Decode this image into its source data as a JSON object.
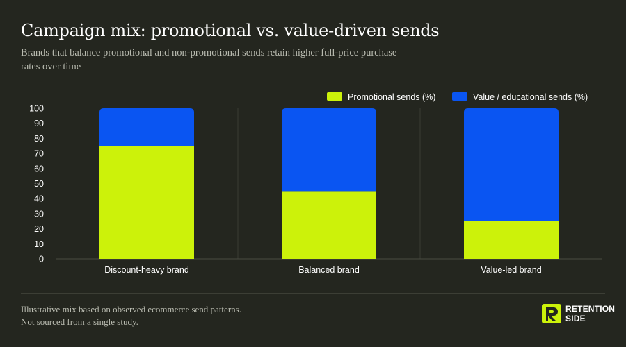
{
  "header": {
    "title": "Campaign mix: promotional vs. value-driven sends",
    "subtitle": "Brands that balance promotional and non-promotional sends retain higher full-price purchase rates over time"
  },
  "colors": {
    "background": "#24261f",
    "promotional": "#ccf20a",
    "value": "#0a55f2",
    "grid": "#3a3c33",
    "text_muted": "#b9bbb0"
  },
  "chart_data": {
    "type": "bar",
    "stacked": true,
    "categories": [
      "Discount-heavy brand",
      "Balanced brand",
      "Value-led brand"
    ],
    "series": [
      {
        "name": "Promotional sends (%)",
        "values": [
          75,
          45,
          25
        ],
        "color": "#ccf20a"
      },
      {
        "name": "Value / educational sends (%)",
        "values": [
          25,
          55,
          75
        ],
        "color": "#0a55f2"
      }
    ],
    "yticks": [
      "0",
      "10",
      "20",
      "30",
      "40",
      "50",
      "60",
      "70",
      "80",
      "90",
      "100"
    ],
    "ylim": [
      0,
      100
    ],
    "xlabel": "",
    "ylabel": "",
    "legend_position": "top-right",
    "grid": "vertical separators between categories"
  },
  "footer": {
    "note": "Illustrative mix based on observed ecommerce send patterns. Not sourced from a single study.",
    "brand_line1": "RETENTION",
    "brand_line2": "SIDE"
  }
}
